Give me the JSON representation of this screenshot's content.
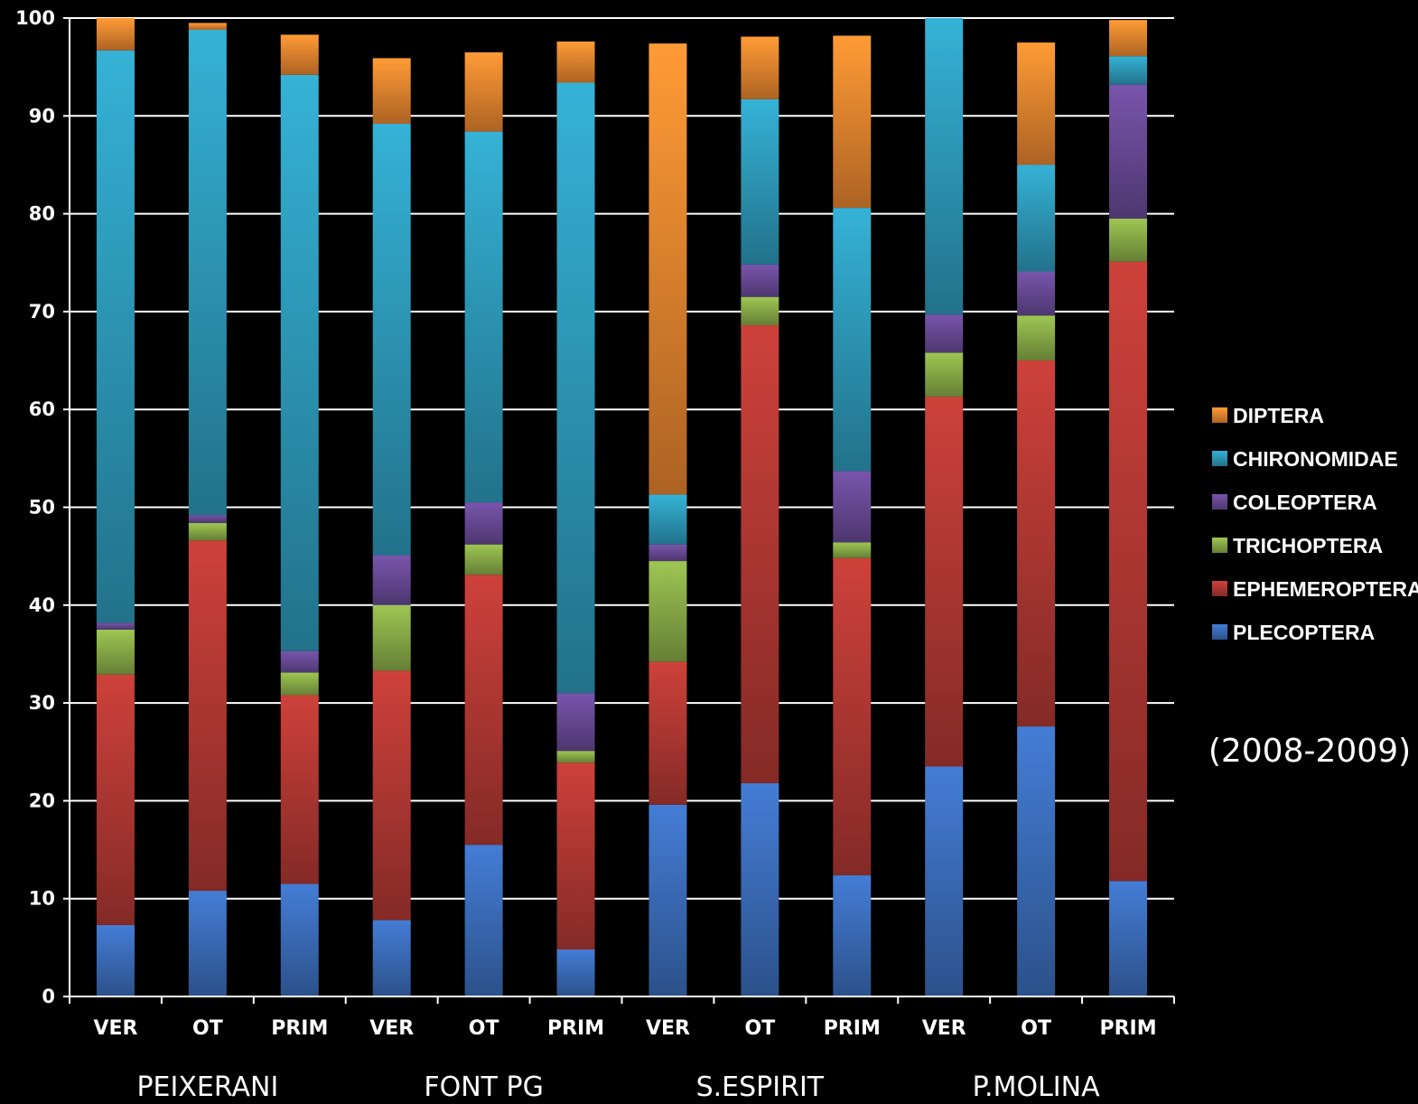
{
  "chart_data": {
    "type": "bar",
    "stacked": true,
    "categories": [
      "VER",
      "OT",
      "PRIM",
      "VER",
      "OT",
      "PRIM",
      "VER",
      "OT",
      "PRIM",
      "VER",
      "OT",
      "PRIM"
    ],
    "groups": [
      {
        "label": "PEIXERANI",
        "categories": [
          0,
          1,
          2
        ]
      },
      {
        "label": "FONT PG",
        "categories": [
          3,
          4,
          5
        ]
      },
      {
        "label": "S.ESPIRIT",
        "categories": [
          6,
          7,
          8
        ]
      },
      {
        "label": "P.MOLINA",
        "categories": [
          9,
          10,
          11
        ]
      }
    ],
    "series": [
      {
        "name": "PLECOPTERA",
        "color": "#3d70bf",
        "values": [
          7.3,
          10.8,
          11.5,
          7.8,
          15.5,
          4.8,
          19.6,
          21.8,
          12.4,
          23.5,
          27.6,
          11.8
        ]
      },
      {
        "name": "EPHEMEROPTERA",
        "color": "#b83a35",
        "values": [
          25.6,
          35.8,
          19.3,
          25.5,
          27.6,
          19.1,
          14.6,
          46.8,
          32.4,
          37.8,
          37.4,
          63.3
        ]
      },
      {
        "name": "TRICHOPTERA",
        "color": "#8db14a",
        "values": [
          4.6,
          1.8,
          2.3,
          6.7,
          3.1,
          1.2,
          10.3,
          2.9,
          1.6,
          4.5,
          4.6,
          4.4
        ]
      },
      {
        "name": "COLEOPTERA",
        "color": "#6b4c9a",
        "values": [
          0.7,
          0.8,
          2.2,
          5.1,
          4.3,
          5.9,
          1.7,
          3.3,
          7.3,
          3.9,
          4.5,
          13.7
        ]
      },
      {
        "name": "CHIRONOMIDAE",
        "color": "#2f9fbf",
        "values": [
          58.5,
          49.6,
          58.9,
          44.1,
          37.9,
          62.4,
          5.1,
          16.9,
          26.9,
          30.3,
          10.9,
          2.9
        ]
      },
      {
        "name": "DIPTERA",
        "color": "#f08a30",
        "values": [
          3.3,
          0.7,
          4.1,
          6.7,
          8.1,
          4.2,
          46.1,
          6.4,
          17.6,
          0.0,
          12.5,
          3.7
        ]
      }
    ],
    "legend_order": [
      "DIPTERA",
      "CHIRONOMIDAE",
      "COLEOPTERA",
      "TRICHOPTERA",
      "EPHEMEROPTERA",
      "PLECOPTERA"
    ],
    "legend_position": "right",
    "ylim": [
      0,
      100
    ],
    "yticks": [
      0,
      10,
      20,
      30,
      40,
      50,
      60,
      70,
      80,
      90,
      100
    ],
    "grid": true,
    "annotation": "(2008-2009)",
    "xlabel": "",
    "ylabel": ""
  }
}
